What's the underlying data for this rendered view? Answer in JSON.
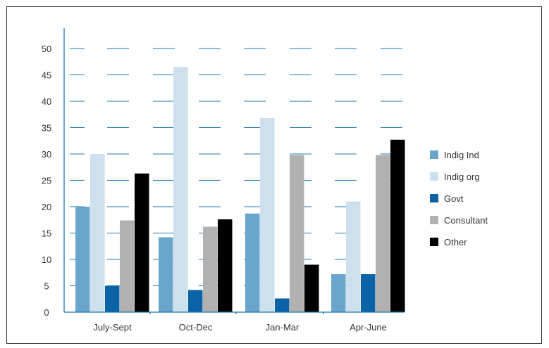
{
  "chart_data": {
    "type": "bar",
    "title": "",
    "xlabel": "",
    "ylabel": "",
    "ylim": [
      0,
      50
    ],
    "yticks": [
      0,
      5,
      10,
      15,
      20,
      25,
      30,
      35,
      40,
      45,
      50
    ],
    "ytick_labels": [
      "0",
      "5",
      "10",
      "15",
      "20",
      "25",
      "30",
      "35",
      "40",
      "45",
      "50"
    ],
    "categories": [
      "July-Sept",
      "Oct-Dec",
      "Jan-Mar",
      "Apr-June"
    ],
    "series": [
      {
        "name": "Indig Ind",
        "color": "#6aa6cc",
        "values": [
          20,
          14.2,
          18.7,
          7.2
        ]
      },
      {
        "name": "Indig org",
        "color": "#cde0ee",
        "values": [
          30,
          46.5,
          36.8,
          21
        ]
      },
      {
        "name": "Govt",
        "color": "#0b63a6",
        "values": [
          5,
          4.2,
          2.6,
          7.2
        ]
      },
      {
        "name": "Consultant",
        "color": "#b1b1b1",
        "values": [
          17.4,
          16.2,
          29.8,
          29.8
        ]
      },
      {
        "name": "Other",
        "color": "#000000",
        "values": [
          26.3,
          17.6,
          9,
          32.7
        ]
      }
    ],
    "grid": true,
    "grid_color": "#1f77b4",
    "legend_position": "right"
  }
}
